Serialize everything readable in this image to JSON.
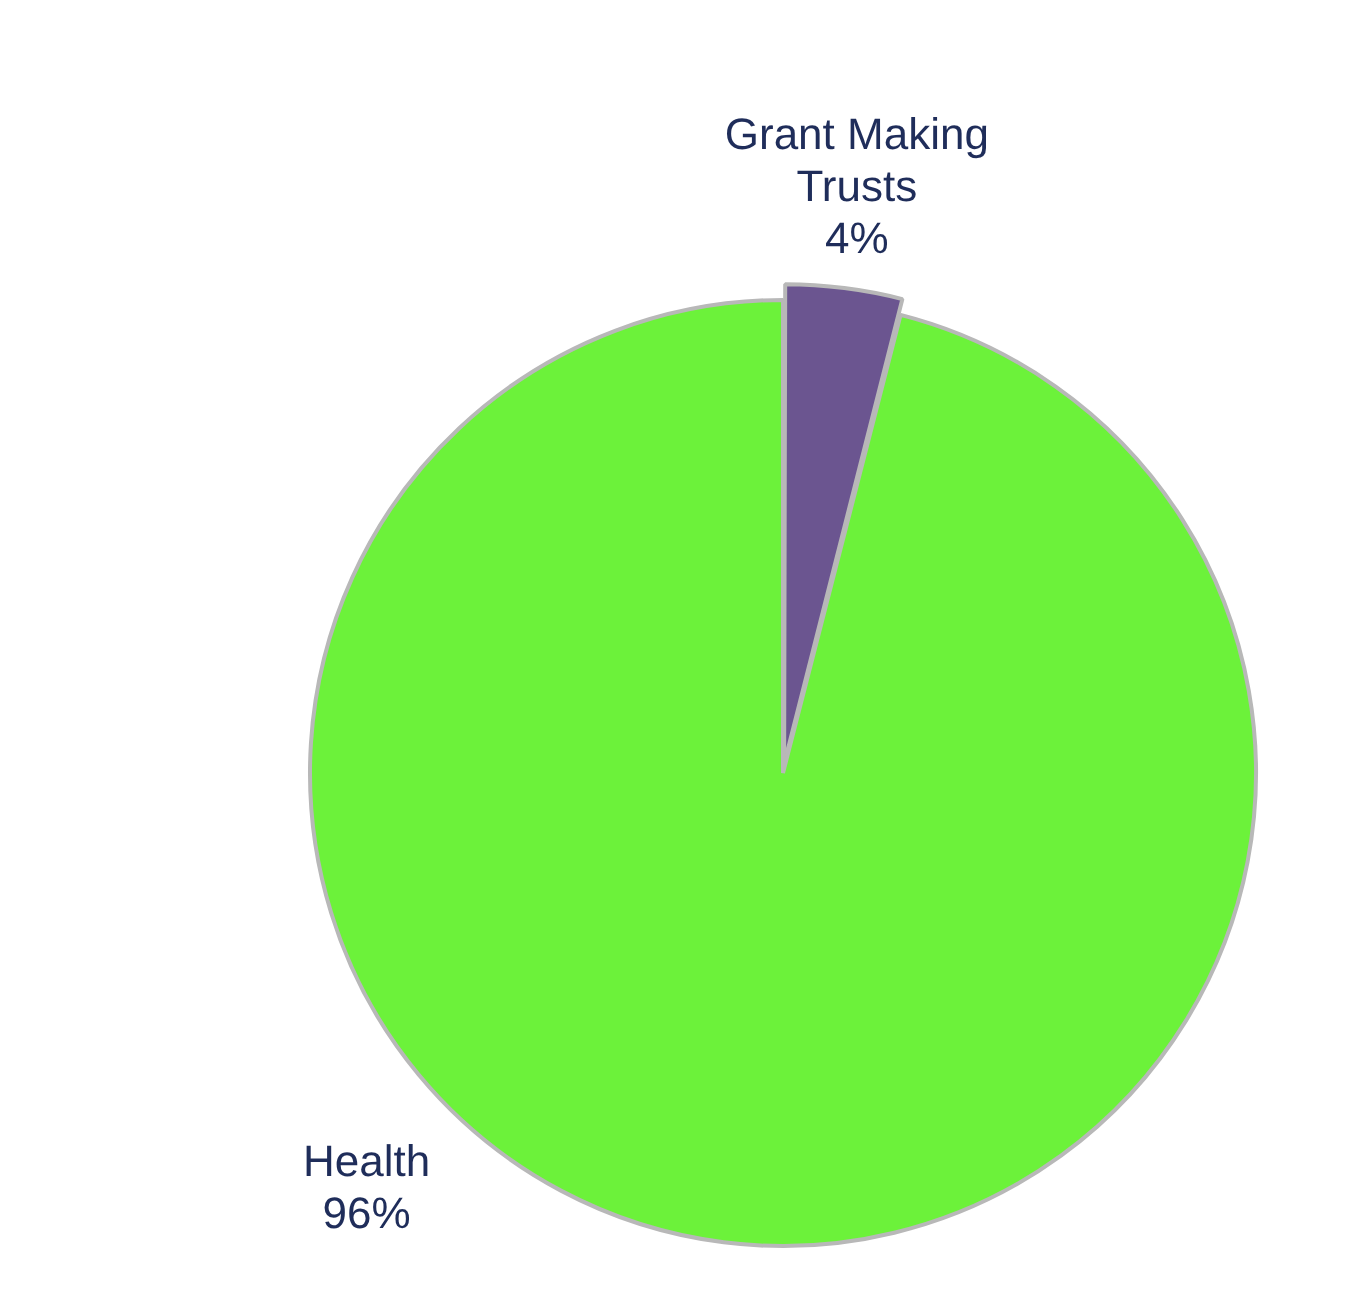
{
  "chart_data": {
    "type": "pie",
    "categories": [
      "Grant Making Trusts",
      "Health"
    ],
    "values": [
      4,
      96
    ],
    "colors": [
      "#6b5590",
      "#6cf23a"
    ],
    "value_labels": [
      "4%",
      "96%"
    ],
    "legend": false
  }
}
